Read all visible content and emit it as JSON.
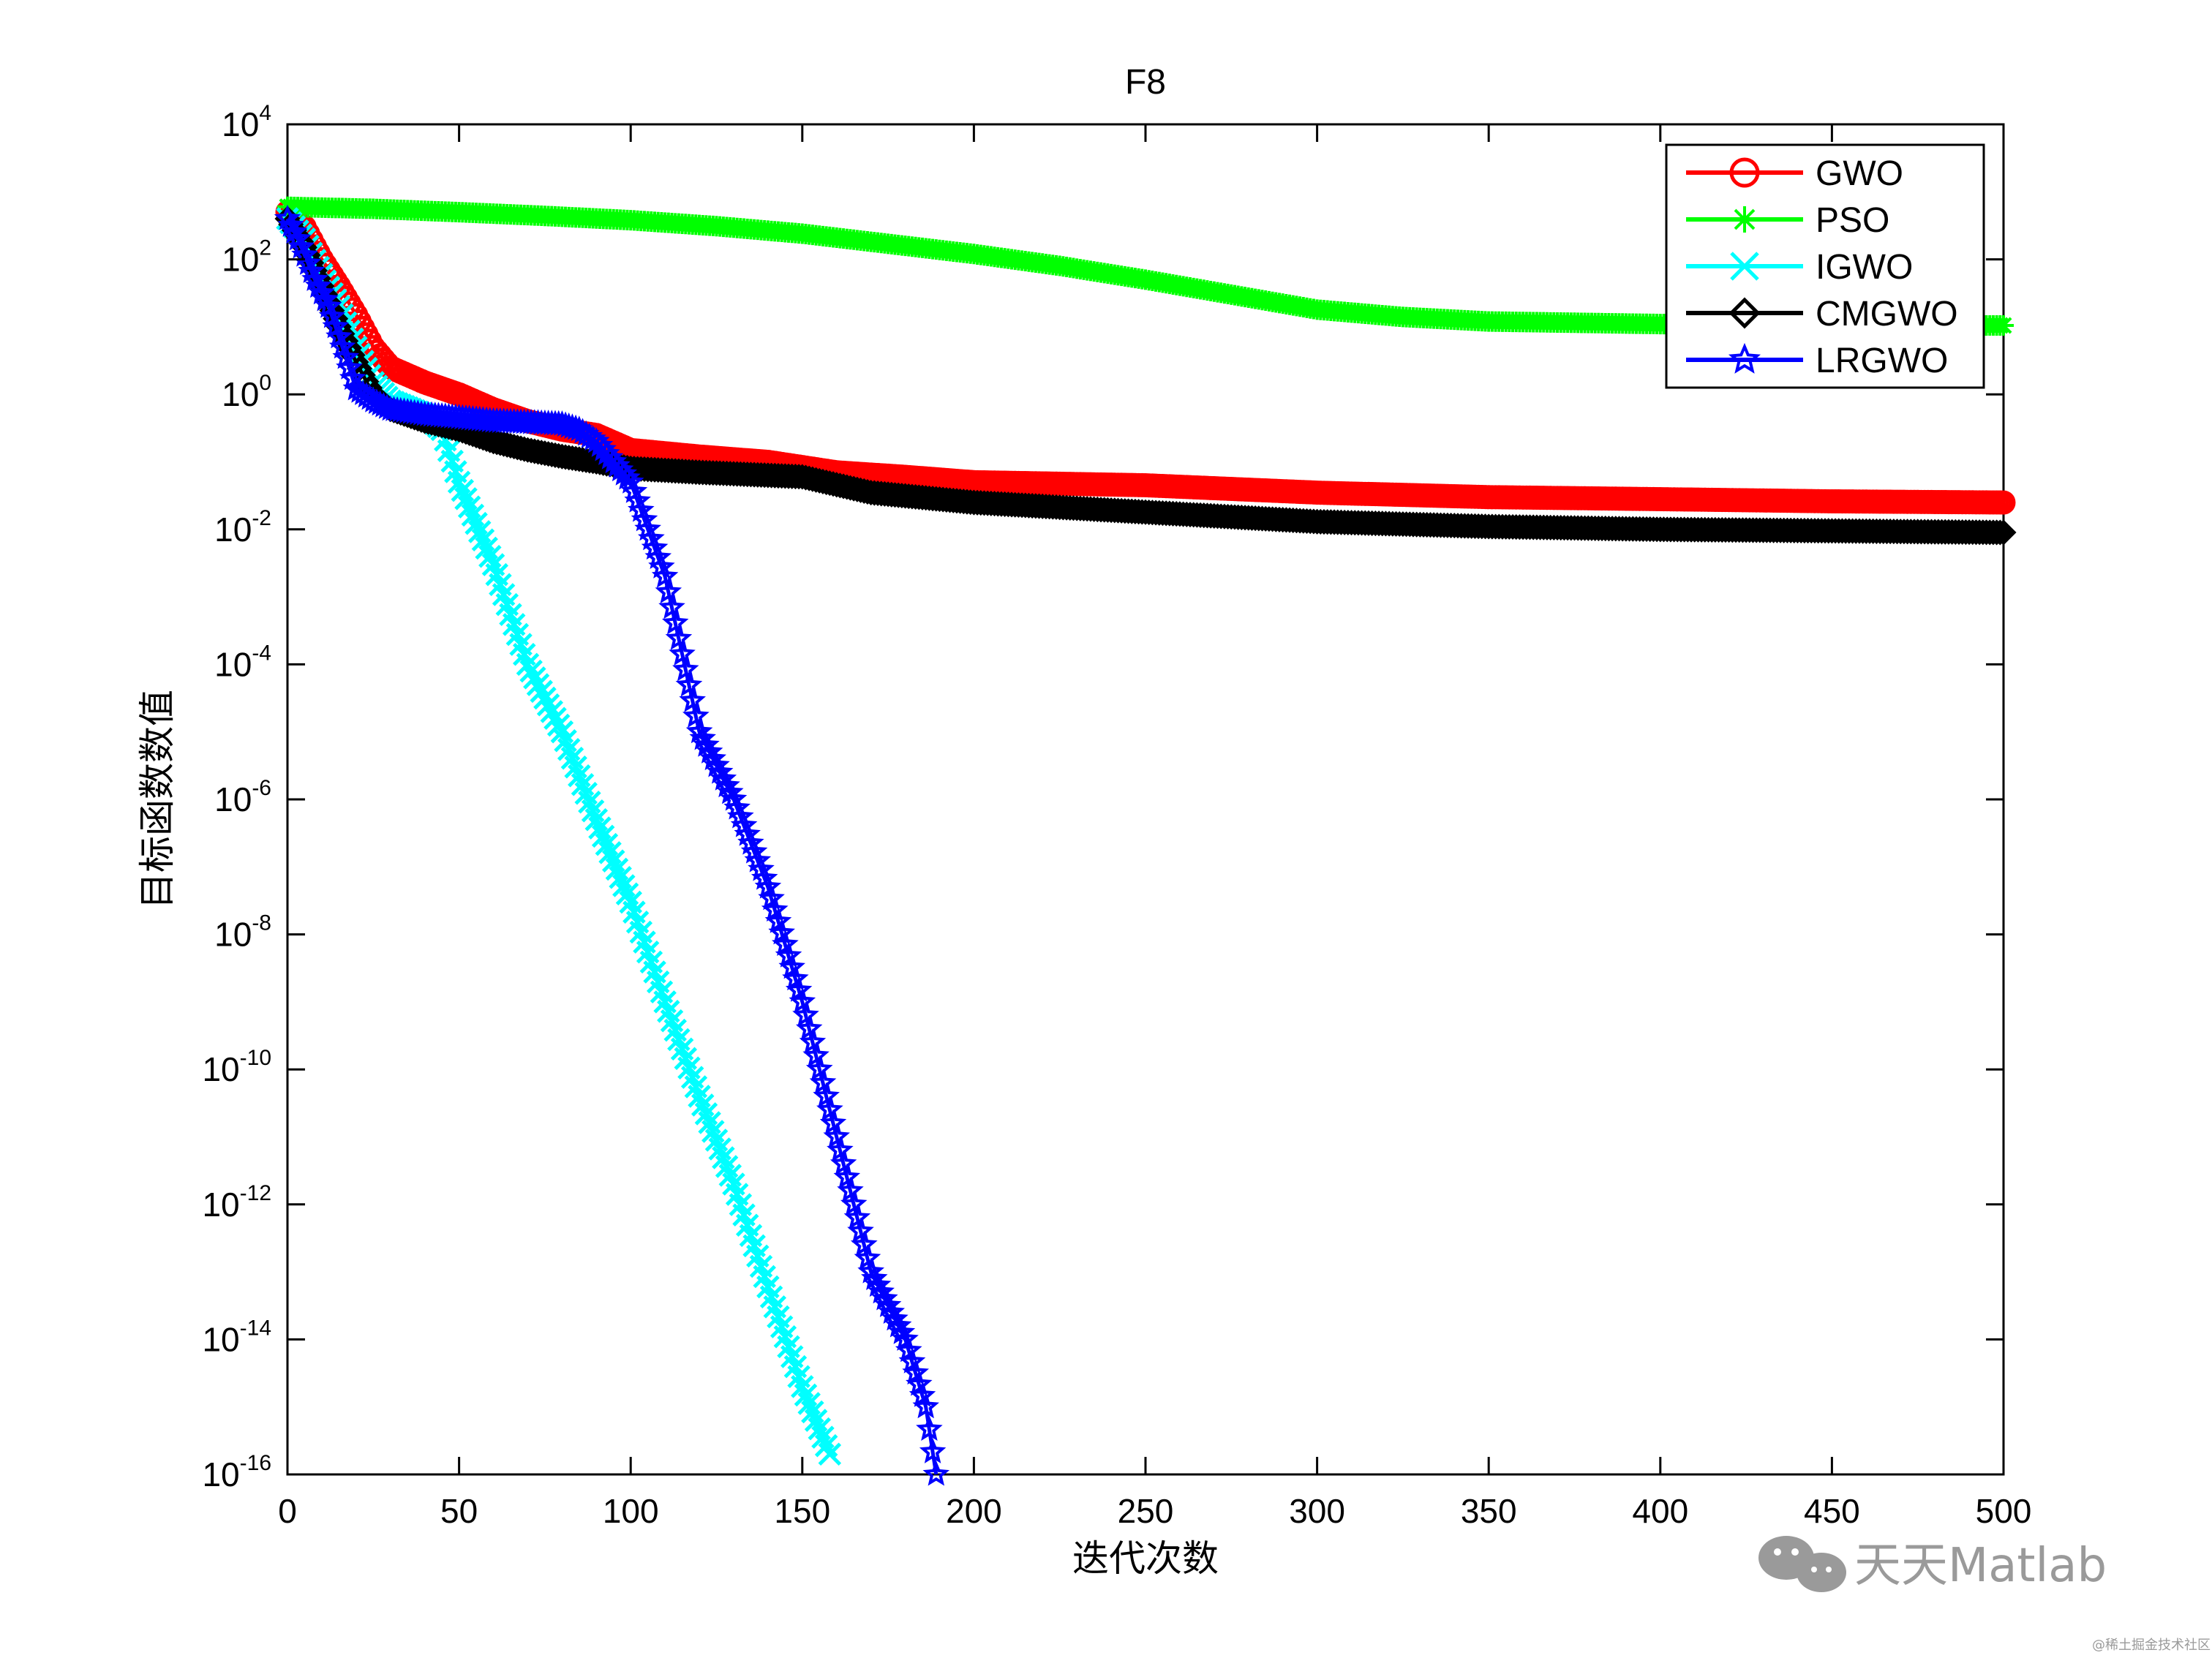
{
  "chart_data": {
    "type": "line",
    "title": "F8",
    "xlabel": "迭代次数",
    "ylabel": "目标函数数值",
    "xlim": [
      0,
      500
    ],
    "ylim": [
      1e-16,
      10000
    ],
    "yscale": "log",
    "x_ticks": [
      "0",
      "50",
      "100",
      "150",
      "200",
      "250",
      "300",
      "350",
      "400",
      "450",
      "500"
    ],
    "y_ticks": [
      {
        "base": "10",
        "exp": "4"
      },
      {
        "base": "10",
        "exp": "2"
      },
      {
        "base": "10",
        "exp": "0"
      },
      {
        "base": "10",
        "exp": "-2"
      },
      {
        "base": "10",
        "exp": "-4"
      },
      {
        "base": "10",
        "exp": "-6"
      },
      {
        "base": "10",
        "exp": "-8"
      },
      {
        "base": "10",
        "exp": "-10"
      },
      {
        "base": "10",
        "exp": "-12"
      },
      {
        "base": "10",
        "exp": "-14"
      },
      {
        "base": "10",
        "exp": "-16"
      }
    ],
    "legend_position": "top-right",
    "grid": false,
    "series": [
      {
        "name": "GWO",
        "color": "#ff0000",
        "marker": "circle",
        "x": [
          0,
          5,
          10,
          15,
          20,
          25,
          30,
          40,
          50,
          60,
          70,
          80,
          90,
          100,
          120,
          140,
          160,
          180,
          200,
          250,
          300,
          350,
          400,
          450,
          500
        ],
        "y": [
          500,
          300,
          100,
          40,
          15,
          5,
          2.5,
          1.5,
          1.0,
          0.6,
          0.4,
          0.3,
          0.25,
          0.15,
          0.12,
          0.1,
          0.07,
          0.06,
          0.05,
          0.045,
          0.035,
          0.03,
          0.028,
          0.026,
          0.025
        ]
      },
      {
        "name": "PSO",
        "color": "#00ff00",
        "marker": "asterisk",
        "x": [
          0,
          25,
          50,
          75,
          100,
          125,
          150,
          175,
          200,
          225,
          250,
          275,
          300,
          325,
          350,
          375,
          400,
          425,
          450,
          475,
          500
        ],
        "y": [
          600,
          560,
          500,
          440,
          380,
          310,
          240,
          170,
          120,
          80,
          50,
          30,
          18,
          14,
          12,
          11.5,
          11,
          10.8,
          10.6,
          10.5,
          10.5
        ]
      },
      {
        "name": "IGWO",
        "color": "#00ffff",
        "marker": "x",
        "x": [
          0,
          5,
          10,
          15,
          20,
          25,
          30,
          40,
          45,
          50,
          60,
          70,
          80,
          90,
          100,
          110,
          120,
          130,
          140,
          150,
          158
        ],
        "y": [
          400,
          200,
          60,
          20,
          5,
          1.5,
          0.8,
          0.5,
          0.3,
          0.05,
          0.003,
          0.0001,
          1e-05,
          5e-07,
          3e-08,
          1e-09,
          4e-11,
          2e-12,
          6e-14,
          2e-15,
          2e-16
        ]
      },
      {
        "name": "CMGWO",
        "color": "#000000",
        "marker": "diamond",
        "x": [
          0,
          5,
          10,
          15,
          20,
          25,
          30,
          40,
          50,
          60,
          70,
          80,
          90,
          100,
          120,
          150,
          170,
          200,
          250,
          300,
          350,
          400,
          450,
          500
        ],
        "y": [
          400,
          150,
          40,
          10,
          3,
          1.0,
          0.6,
          0.4,
          0.3,
          0.2,
          0.15,
          0.12,
          0.1,
          0.08,
          0.07,
          0.06,
          0.035,
          0.025,
          0.018,
          0.013,
          0.011,
          0.01,
          0.0095,
          0.009
        ]
      },
      {
        "name": "LRGWO",
        "color": "#0000ff",
        "marker": "star",
        "x": [
          0,
          3,
          8,
          12,
          16,
          20,
          25,
          30,
          40,
          50,
          60,
          70,
          80,
          85,
          90,
          95,
          100,
          110,
          120,
          130,
          140,
          150,
          160,
          170,
          180,
          186,
          189
        ],
        "y": [
          400,
          200,
          50,
          20,
          5,
          1.2,
          0.8,
          0.6,
          0.5,
          0.45,
          0.4,
          0.38,
          0.36,
          0.3,
          0.2,
          0.1,
          0.05,
          0.002,
          1e-05,
          1e-06,
          5e-08,
          1e-09,
          1e-11,
          1e-13,
          1e-14,
          1e-15,
          1e-16
        ]
      }
    ]
  },
  "watermark": {
    "text": "天天Matlab",
    "subtext": "@稀土掘金技术社区"
  }
}
